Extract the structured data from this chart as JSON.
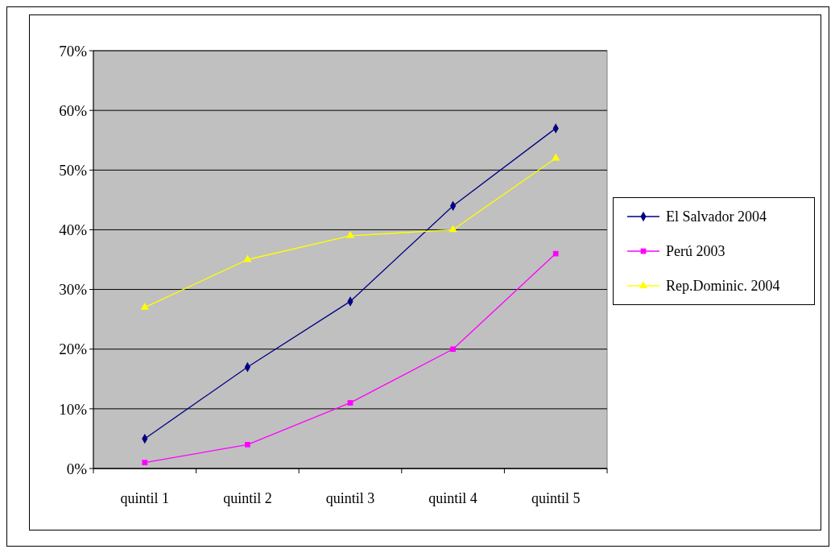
{
  "chart_data": {
    "type": "line",
    "categories": [
      "quintil 1",
      "quintil 2",
      "quintil 3",
      "quintil 4",
      "quintil 5"
    ],
    "series": [
      {
        "name": "El Salvador 2004",
        "color": "#000080",
        "marker": "diamond",
        "values": [
          5,
          17,
          28,
          44,
          57
        ]
      },
      {
        "name": "Perú 2003",
        "color": "#ff00ff",
        "marker": "square",
        "values": [
          1,
          4,
          11,
          20,
          36
        ]
      },
      {
        "name": "Rep.Dominic. 2004",
        "color": "#ffff00",
        "marker": "triangle",
        "values": [
          27,
          35,
          39,
          40,
          52
        ]
      }
    ],
    "ylim": [
      0,
      70
    ],
    "yticks": [
      {
        "value": 0,
        "label": "0%"
      },
      {
        "value": 10,
        "label": "10%"
      },
      {
        "value": 20,
        "label": "20%"
      },
      {
        "value": 30,
        "label": "30%"
      },
      {
        "value": 40,
        "label": "40%"
      },
      {
        "value": 50,
        "label": "50%"
      },
      {
        "value": 60,
        "label": "60%"
      },
      {
        "value": 70,
        "label": "70%"
      }
    ],
    "grid": "y",
    "legend": "right",
    "line_style": "solid"
  }
}
